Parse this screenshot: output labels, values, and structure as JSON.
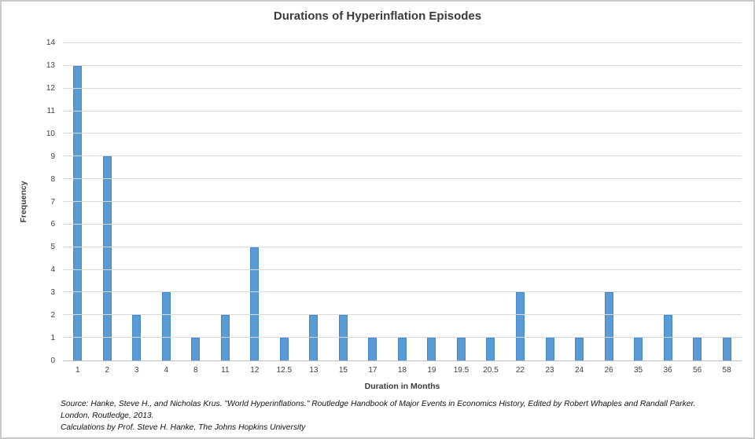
{
  "chart_data": {
    "type": "bar",
    "title": "Durations of Hyperinflation Episodes",
    "xlabel": "Duration in Months",
    "ylabel": "Frequency",
    "categories": [
      "1",
      "2",
      "3",
      "4",
      "8",
      "11",
      "12",
      "12.5",
      "13",
      "15",
      "17",
      "18",
      "19",
      "19.5",
      "20.5",
      "22",
      "23",
      "24",
      "26",
      "35",
      "36",
      "56",
      "58"
    ],
    "values": [
      13,
      9,
      2,
      3,
      1,
      2,
      5,
      1,
      2,
      2,
      1,
      1,
      1,
      1,
      1,
      3,
      1,
      1,
      3,
      1,
      2,
      1,
      1
    ],
    "ylim": [
      0,
      14
    ],
    "ytick_step": 1,
    "grid": "horizontal",
    "legend": "none",
    "colors": {
      "bar_fill": "#5b9bd5",
      "bar_border": "#4587c8",
      "gridline": "#d9d9d9",
      "axis_line": "#bfbfbf",
      "text": "#404040"
    }
  },
  "footer": {
    "lines": [
      "Source: Hanke, Steve H., and Nicholas Krus. \"World Hyperinflations.\" Routledge Handbook of Major Events in Economics History, Edited by Robert Whaples and Randall Parker.",
      "London, Routledge, 2013.",
      "Calculations by Prof. Steve H. Hanke, The Johns Hopkins University"
    ]
  }
}
